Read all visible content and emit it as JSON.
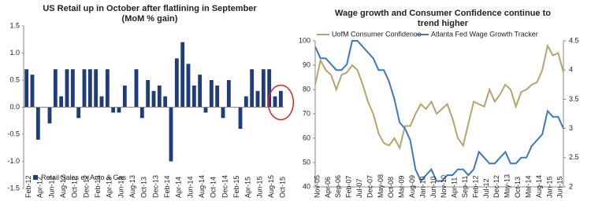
{
  "chart_data": [
    {
      "type": "bar",
      "title": [
        "US Retail up in October after flatlining in September",
        "(MoM % gain)"
      ],
      "categories": [
        "Feb-12",
        null,
        "Apr-12",
        null,
        "Jun-12",
        null,
        "Aug-12",
        null,
        "Oct-12",
        null,
        "Dec-12",
        null,
        "Feb-13",
        null,
        "Apr-13",
        null,
        "Jun-13",
        null,
        "Aug-13",
        null,
        "Oct-13",
        null,
        "Dec-13",
        null,
        "Feb-14",
        null,
        "Apr-14",
        null,
        "Jun-14",
        null,
        "Aug-14",
        null,
        "Oct-14",
        null,
        "Dec-14",
        null,
        "Feb-15",
        null,
        "Apr-15",
        null,
        "Jun-15",
        null,
        "Aug-15",
        null,
        "Oct-15"
      ],
      "series": [
        {
          "name": "Retail Sales ex Auto & Gas",
          "color": "#1f3d7a",
          "values": [
            0.7,
            0.6,
            -0.6,
            0.0,
            -0.3,
            0.7,
            0.2,
            0.7,
            0.7,
            -0.2,
            0.7,
            0.7,
            0.7,
            0.2,
            0.7,
            -0.1,
            -0.1,
            0.4,
            0.0,
            0.7,
            -0.2,
            0.5,
            0.3,
            0.4,
            0.2,
            -1.0,
            0.9,
            1.2,
            0.8,
            0.4,
            0.6,
            -0.1,
            0.5,
            0.4,
            -0.2,
            0.5,
            0.0,
            -0.4,
            0.2,
            0.7,
            0.3,
            0.7,
            0.7,
            0.2,
            0.3
          ]
        }
      ],
      "ylim": [
        -1.5,
        1.5
      ],
      "yticks": [
        -1.5,
        {
          "value": -1.0,
          "label": "-1.0"
        },
        -0.5,
        {
          "value": 0.0,
          "label": "0.0"
        },
        0.5,
        {
          "value": 1.0,
          "label": "1.0"
        },
        1.5
      ]
    },
    {
      "type": "line",
      "title": [
        "Wage growth and Consumer Confidence continue to",
        "trend higher"
      ],
      "categories": [
        "Nov-05",
        null,
        "Apr-06",
        null,
        "Sep-06",
        null,
        "Feb-07",
        null,
        "Jul-07",
        null,
        "Dec-07",
        null,
        "May-08",
        null,
        "Oct-08",
        null,
        "Mar-09",
        null,
        "Aug-09",
        null,
        "Jan-10",
        null,
        "Jun-10",
        null,
        "Nov-10",
        null,
        "Apr-11",
        null,
        "Sep-11",
        null,
        "Feb-12",
        null,
        "Jul-12",
        null,
        "Dec-12",
        null,
        "May-13",
        null,
        "Oct-13",
        null,
        "Mar-14",
        null,
        "Aug-14",
        null,
        "Jan-15",
        null,
        "Jun-15",
        null
      ],
      "series": [
        {
          "name": "UofM Consumer Confidence",
          "color": "#b8a36a",
          "axis": "y",
          "values": [
            82,
            92,
            88,
            86,
            80,
            86,
            87,
            90,
            88,
            82,
            75,
            70,
            62,
            58,
            57,
            60,
            56,
            65,
            65,
            70,
            74,
            72,
            75,
            70,
            72,
            74,
            68,
            60,
            57,
            66,
            75,
            74,
            73,
            80,
            75,
            78,
            82,
            80,
            73,
            79,
            80,
            82,
            83,
            88,
            98,
            94,
            95,
            87
          ]
        },
        {
          "name": "Atlanta Fed Wage Growth Tracker",
          "color": "#3b78c2",
          "axis": "y2",
          "values": [
            4.4,
            4.2,
            4.2,
            4.1,
            4.0,
            4.0,
            4.1,
            4.5,
            4.5,
            4.4,
            4.3,
            4.2,
            4.0,
            4.0,
            3.8,
            3.5,
            3.1,
            3.0,
            2.8,
            2.3,
            2.1,
            2.2,
            2.3,
            2.1,
            2.1,
            2.2,
            2.2,
            2.3,
            2.3,
            2.2,
            2.3,
            2.6,
            2.5,
            2.4,
            2.4,
            2.5,
            2.6,
            2.4,
            2.4,
            2.5,
            2.5,
            2.7,
            2.8,
            2.9,
            3.3,
            3.2,
            3.2,
            3.0
          ]
        }
      ],
      "ylim": [
        40,
        100
      ],
      "yticks": [
        40,
        50,
        60,
        70,
        80,
        90,
        100
      ],
      "y2lim": [
        2,
        4.5
      ],
      "y2ticks": [
        2,
        2.5,
        3,
        3.5,
        4,
        4.5
      ]
    }
  ]
}
